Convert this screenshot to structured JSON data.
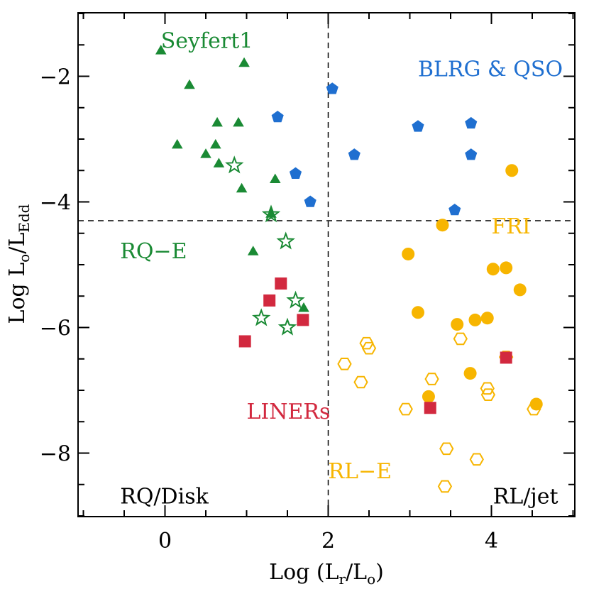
{
  "chart_data": {
    "type": "scatter",
    "title": "",
    "xlabel": {
      "prefix": "Log (L",
      "sub1": "r",
      "mid": "/L",
      "sub2": "o",
      "suffix": ")"
    },
    "ylabel": {
      "prefix": "Log L",
      "sub1": "o",
      "mid": "/L",
      "sub2": "Edd"
    },
    "xlim": [
      -1,
      5
    ],
    "ylim": [
      -9,
      -1
    ],
    "xticks": [
      {
        "v": 0,
        "label": "0"
      },
      {
        "v": 2,
        "label": "2"
      },
      {
        "v": 4,
        "label": "4"
      }
    ],
    "yticks": [
      {
        "v": -2,
        "label": "−2"
      },
      {
        "v": -4,
        "label": "−4"
      },
      {
        "v": -6,
        "label": "−6"
      },
      {
        "v": -8,
        "label": "−8"
      }
    ],
    "divider_x": 2.0,
    "divider_y": -4.3,
    "colors": {
      "green": "#1a8a34",
      "blue": "#1f6fd0",
      "red": "#d2293f",
      "orange": "#f7b500",
      "black": "#000000"
    },
    "annotations": [
      {
        "text": "Seyfert1",
        "x": -0.05,
        "y": -1.55,
        "color": "green",
        "anchor": "start"
      },
      {
        "text": "BLRG & QSO",
        "x": 3.1,
        "y": -2.0,
        "color": "blue",
        "anchor": "start"
      },
      {
        "text": "RQ−E",
        "x": -0.55,
        "y": -4.9,
        "color": "green",
        "anchor": "start"
      },
      {
        "text": "FRI",
        "x": 4.0,
        "y": -4.5,
        "color": "orange",
        "anchor": "start"
      },
      {
        "text": "LINERs",
        "x": 1.0,
        "y": -7.45,
        "color": "red",
        "anchor": "start"
      },
      {
        "text": "RL−E",
        "x": 2.0,
        "y": -8.4,
        "color": "orange",
        "anchor": "start"
      },
      {
        "text": "RQ/Disk",
        "x": -0.55,
        "y": -8.8,
        "color": "black",
        "anchor": "start"
      },
      {
        "text": "RL/jet",
        "x": 4.02,
        "y": -8.8,
        "color": "black",
        "anchor": "start"
      }
    ],
    "series": [
      {
        "name": "Seyfert1",
        "marker": "triangle-filled",
        "color": "green",
        "points": [
          [
            -0.05,
            -1.6
          ],
          [
            0.97,
            -1.8
          ],
          [
            0.3,
            -2.15
          ],
          [
            0.64,
            -2.75
          ],
          [
            0.9,
            -2.75
          ],
          [
            0.15,
            -3.1
          ],
          [
            0.5,
            -3.25
          ],
          [
            0.62,
            -3.1
          ],
          [
            0.66,
            -3.4
          ],
          [
            0.94,
            -3.8
          ],
          [
            1.3,
            -4.2
          ],
          [
            1.35,
            -3.65
          ],
          [
            1.08,
            -4.8
          ],
          [
            1.7,
            -5.7
          ]
        ]
      },
      {
        "name": "Seyfert1 (open)",
        "marker": "star-open",
        "color": "green",
        "points": [
          [
            0.85,
            -3.42
          ],
          [
            1.3,
            -4.2
          ],
          [
            1.48,
            -4.63
          ],
          [
            1.18,
            -5.85
          ],
          [
            1.6,
            -5.57
          ],
          [
            1.5,
            -6.0
          ]
        ]
      },
      {
        "name": "BLRG & QSO",
        "marker": "pentagon-filled",
        "color": "blue",
        "points": [
          [
            2.05,
            -2.2
          ],
          [
            1.38,
            -2.65
          ],
          [
            3.1,
            -2.8
          ],
          [
            3.75,
            -2.75
          ],
          [
            2.32,
            -3.25
          ],
          [
            3.75,
            -3.25
          ],
          [
            1.6,
            -3.55
          ],
          [
            1.78,
            -4.0
          ],
          [
            3.55,
            -4.13
          ]
        ]
      },
      {
        "name": "FRI",
        "marker": "circle-filled",
        "color": "orange",
        "points": [
          [
            4.25,
            -3.5
          ],
          [
            3.4,
            -4.37
          ],
          [
            2.98,
            -4.83
          ],
          [
            4.02,
            -5.07
          ],
          [
            4.18,
            -5.05
          ],
          [
            4.35,
            -5.4
          ],
          [
            3.1,
            -5.76
          ],
          [
            3.58,
            -5.95
          ],
          [
            3.8,
            -5.88
          ],
          [
            3.95,
            -5.85
          ],
          [
            3.74,
            -6.73
          ],
          [
            3.23,
            -7.1
          ],
          [
            4.55,
            -7.22
          ]
        ]
      },
      {
        "name": "RL-E",
        "marker": "hexagon-open",
        "color": "orange",
        "points": [
          [
            2.47,
            -6.25
          ],
          [
            2.5,
            -6.33
          ],
          [
            2.2,
            -6.58
          ],
          [
            2.4,
            -6.87
          ],
          [
            3.27,
            -6.82
          ],
          [
            3.62,
            -6.18
          ],
          [
            4.18,
            -6.47
          ],
          [
            3.95,
            -6.97
          ],
          [
            3.96,
            -7.07
          ],
          [
            2.95,
            -7.3
          ],
          [
            4.52,
            -7.3
          ],
          [
            3.45,
            -7.93
          ],
          [
            3.82,
            -8.1
          ],
          [
            3.43,
            -8.53
          ]
        ]
      },
      {
        "name": "LINERs",
        "marker": "square-filled",
        "color": "red",
        "points": [
          [
            1.42,
            -5.3
          ],
          [
            1.28,
            -5.57
          ],
          [
            1.69,
            -5.88
          ],
          [
            0.98,
            -6.22
          ],
          [
            4.18,
            -6.48
          ],
          [
            3.25,
            -7.28
          ]
        ]
      }
    ]
  }
}
